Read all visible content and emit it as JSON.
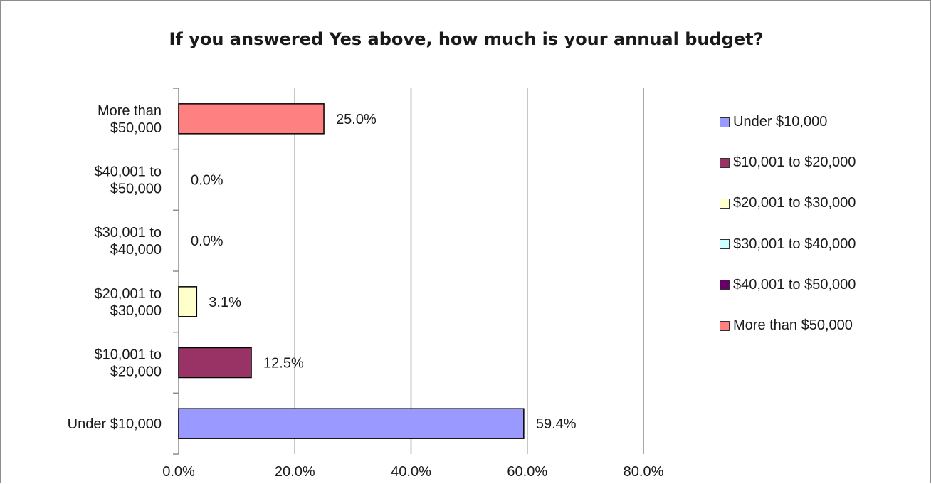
{
  "chart_data": {
    "type": "bar",
    "orientation": "horizontal",
    "title": "If you answered Yes above, how much is your annual budget?",
    "xlabel": "",
    "ylabel": "",
    "categories": [
      [
        "Under $10,000"
      ],
      [
        "$10,001 to",
        "$20,000"
      ],
      [
        "$20,001 to",
        "$30,000"
      ],
      [
        "$30,001 to",
        "$40,000"
      ],
      [
        "$40,001 to",
        "$50,000"
      ],
      [
        "More than",
        "$50,000"
      ]
    ],
    "values": [
      59.4,
      12.5,
      3.1,
      0.0,
      0.0,
      25.0
    ],
    "data_labels": [
      "59.4%",
      "12.5%",
      "3.1%",
      "0.0%",
      "0.0%",
      "25.0%"
    ],
    "colors": [
      "#9999ff",
      "#993366",
      "#ffffcc",
      "#ccffff",
      "#660066",
      "#ff8080"
    ],
    "xlim": [
      0,
      80
    ],
    "x_ticks": [
      "0.0%",
      "20.0%",
      "40.0%",
      "60.0%",
      "80.0%"
    ],
    "x_tick_values": [
      0,
      20,
      40,
      60,
      80
    ],
    "grid": "vertical major gridlines",
    "legend_position": "right",
    "legend": [
      "Under $10,000",
      "$10,001 to $20,000",
      "$20,001 to $30,000",
      "$30,001 to $40,000",
      "$40,001 to $50,000",
      "More than $50,000"
    ]
  }
}
